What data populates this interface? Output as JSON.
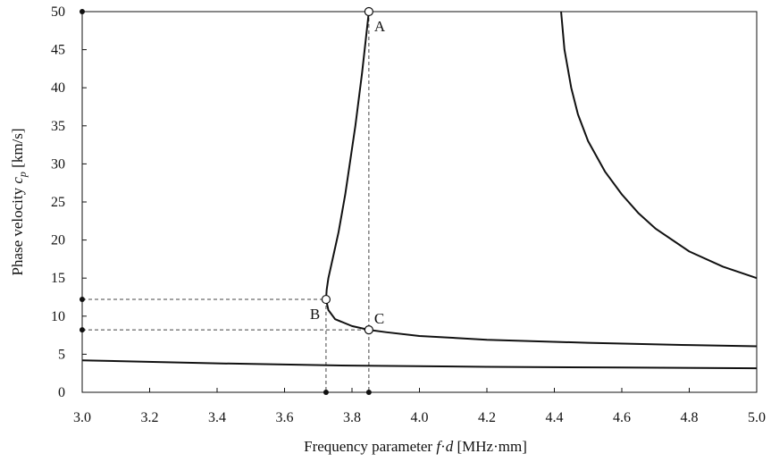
{
  "chart_data": {
    "type": "line",
    "title": "",
    "xlabel": "Frequency parameter f·d [MHz·mm]",
    "ylabel": "Phase velocity c_p [km/s]",
    "xlabel_parts": {
      "prefix": "Frequency parameter ",
      "f": "f",
      "dot": "·",
      "d": "d",
      "suffix": " [MHz·mm]"
    },
    "ylabel_parts": {
      "prefix": "Phase velocity ",
      "c": "c",
      "sub": "p",
      "suffix": " [km/s]"
    },
    "xlim": [
      3.0,
      5.0
    ],
    "ylim": [
      0,
      50
    ],
    "xticks": [
      "3.0",
      "3.2",
      "3.4",
      "3.6",
      "3.8",
      "4.0",
      "4.2",
      "4.4",
      "4.6",
      "4.8",
      "5.0"
    ],
    "yticks": [
      "0",
      "5",
      "10",
      "15",
      "20",
      "25",
      "30",
      "35",
      "40",
      "45",
      "50"
    ],
    "grid": false,
    "series": [
      {
        "x": [
          3.0,
          3.4,
          3.8,
          4.2,
          4.6,
          5.0
        ],
        "y": [
          4.2,
          3.8,
          3.5,
          3.35,
          3.25,
          3.15
        ]
      },
      {
        "x": [
          3.85,
          3.84,
          3.83,
          3.82,
          3.81,
          3.8,
          3.79,
          3.78,
          3.77,
          3.76,
          3.75,
          3.74,
          3.73,
          3.725,
          3.723,
          3.73,
          3.75,
          3.8,
          3.85,
          3.9,
          4.0,
          4.2,
          4.5,
          4.8,
          5.0
        ],
        "y": [
          50,
          46,
          42,
          38.5,
          35,
          32,
          29,
          26,
          23.5,
          21,
          19,
          17,
          15,
          13.5,
          12.2,
          10.8,
          9.6,
          8.7,
          8.2,
          7.9,
          7.4,
          6.9,
          6.5,
          6.2,
          6.05
        ]
      },
      {
        "x": [
          4.42,
          4.43,
          4.45,
          4.47,
          4.5,
          4.55,
          4.6,
          4.65,
          4.7,
          4.8,
          4.9,
          5.0
        ],
        "y": [
          50,
          45,
          40,
          36.5,
          33,
          29,
          26,
          23.5,
          21.5,
          18.5,
          16.5,
          15
        ]
      }
    ],
    "points": [
      {
        "label": "A",
        "x": 3.85,
        "y": 50
      },
      {
        "label": "B",
        "x": 3.723,
        "y": 12.2
      },
      {
        "label": "C",
        "x": 3.85,
        "y": 8.2
      }
    ],
    "guides": [
      {
        "type": "vertical",
        "x": 3.85,
        "y": 50
      },
      {
        "type": "vertical",
        "x": 3.723,
        "y": 12.2
      },
      {
        "type": "horizontal",
        "x": 3.723,
        "y": 12.2
      },
      {
        "type": "horizontal",
        "x": 3.85,
        "y": 8.2
      }
    ],
    "axis_markers": [
      {
        "axis": "y",
        "value": 50
      },
      {
        "axis": "y",
        "value": 12.2
      },
      {
        "axis": "y",
        "value": 8.2
      },
      {
        "axis": "x",
        "value": 3.723
      },
      {
        "axis": "x",
        "value": 3.85
      }
    ]
  }
}
